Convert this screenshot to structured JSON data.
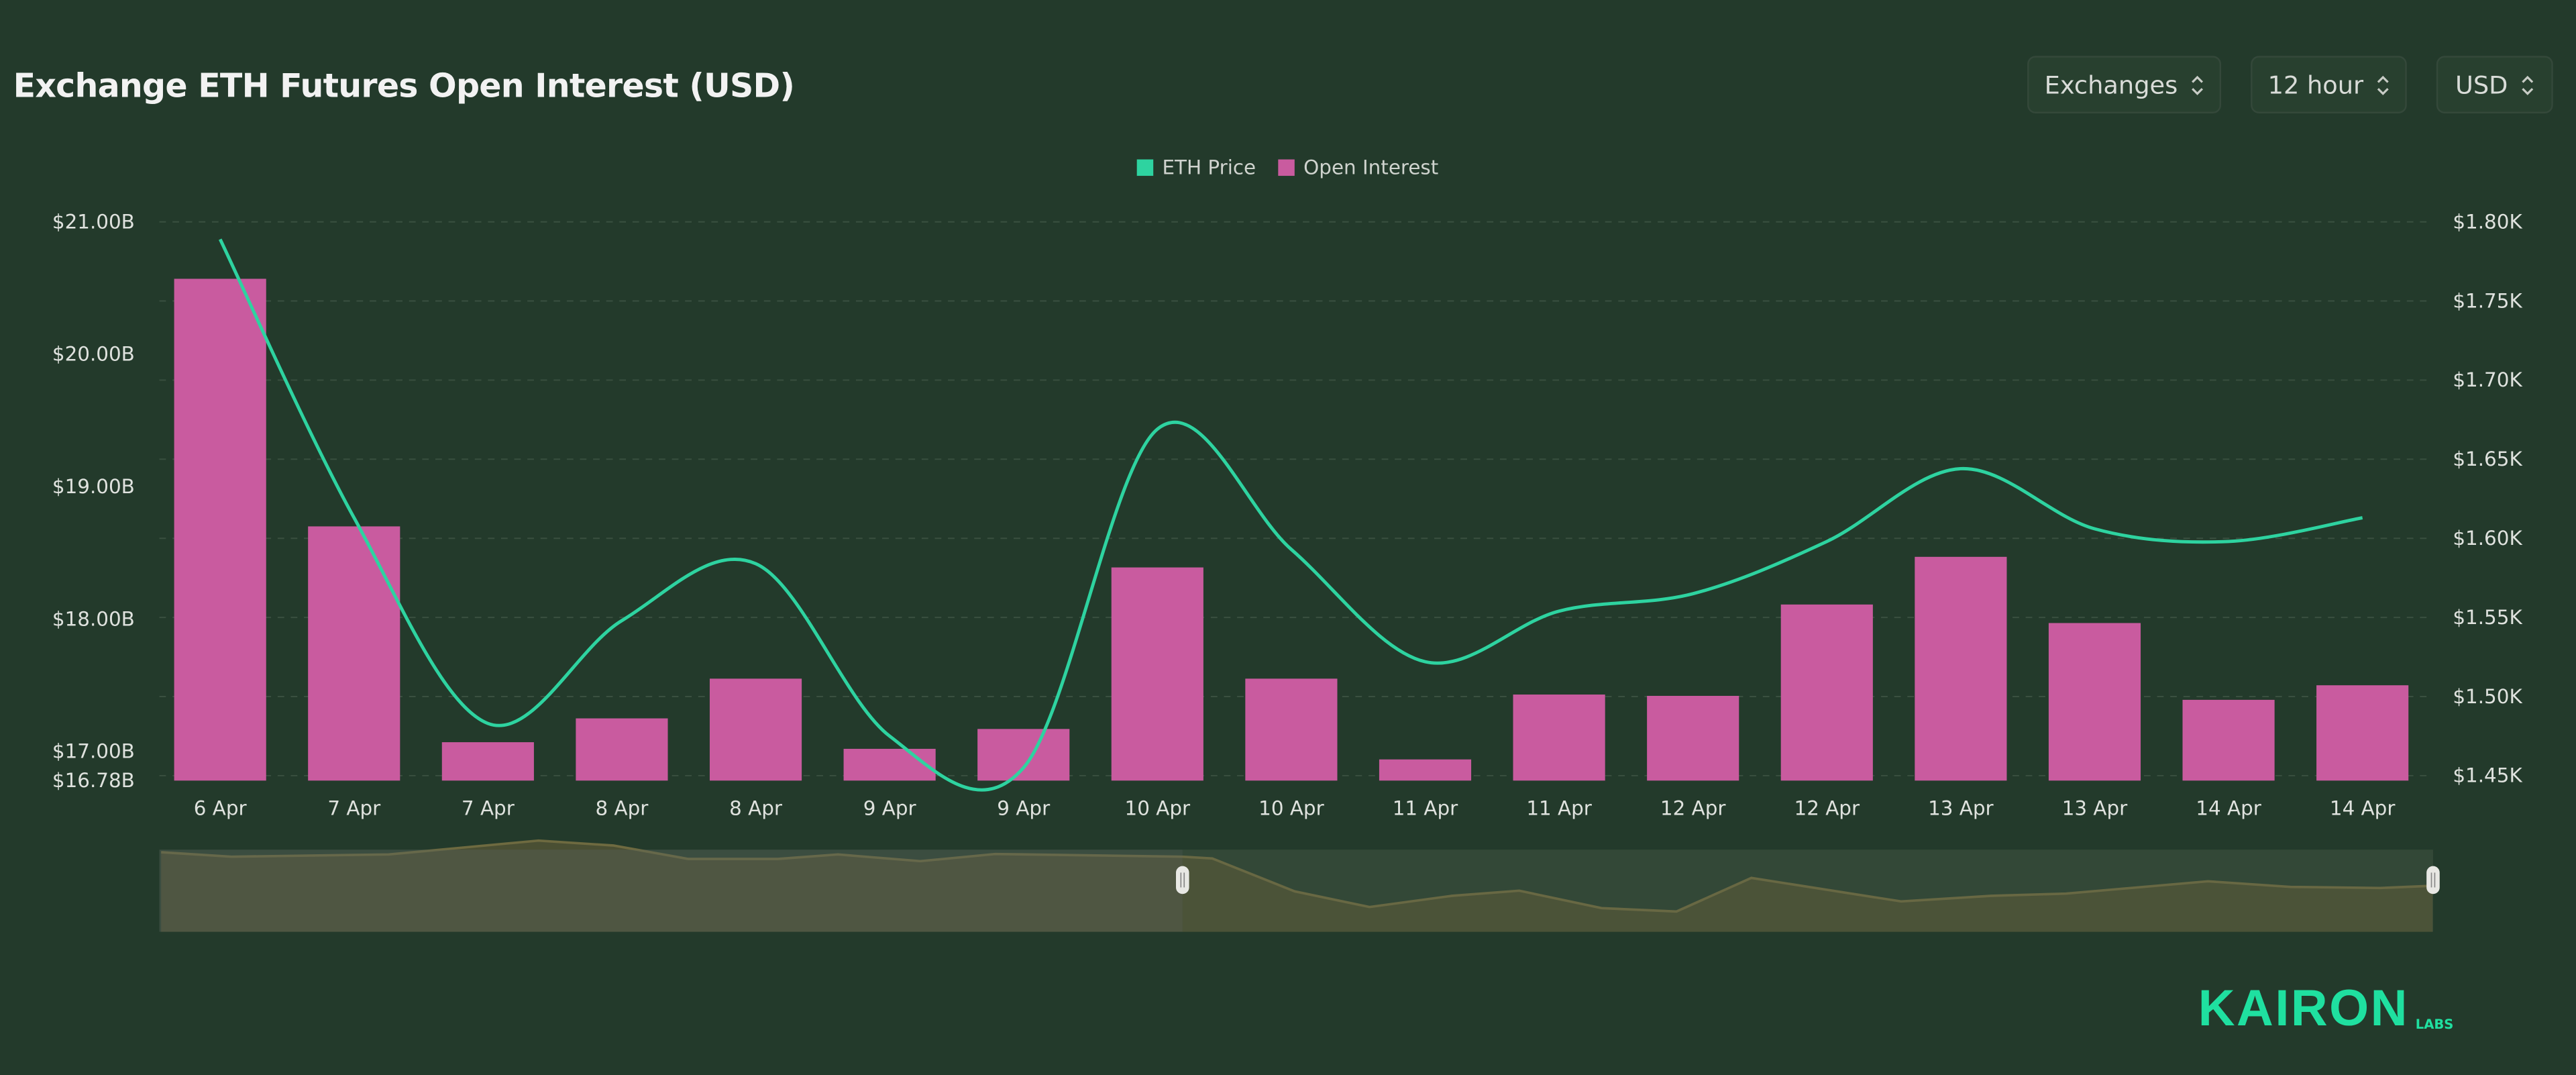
{
  "header": {
    "title": "Exchange ETH Futures Open Interest (USD)",
    "dropdowns": [
      {
        "label": "Exchanges",
        "icon": "up-down-chevron-icon"
      },
      {
        "label": "12 hour",
        "icon": "up-down-chevron-icon"
      },
      {
        "label": "USD",
        "icon": "up-down-chevron-icon"
      }
    ]
  },
  "logo": {
    "text": "KAIRON",
    "sub": "LABS"
  },
  "colors": {
    "background": "#233a2b",
    "bars": "#c95b9f",
    "line": "#2ed3a0",
    "logo": "#1fe0a0"
  },
  "navigator": {
    "selected_start_percent": 45,
    "selected_end_percent": 100
  },
  "chart_data": {
    "type": "bar+line",
    "title": "Exchange ETH Futures Open Interest (USD)",
    "legend": {
      "position": "top-center",
      "entries": [
        "ETH Price",
        "Open Interest"
      ]
    },
    "categories": [
      "6 Apr",
      "7 Apr",
      "7 Apr",
      "8 Apr",
      "8 Apr",
      "9 Apr",
      "9 Apr",
      "10 Apr",
      "10 Apr",
      "11 Apr",
      "11 Apr",
      "12 Apr",
      "12 Apr",
      "13 Apr",
      "13 Apr",
      "14 Apr",
      "14 Apr"
    ],
    "series": [
      {
        "name": "Open Interest",
        "type": "bar",
        "axis": "left",
        "unit": "USD billions",
        "values": [
          20.57,
          18.7,
          17.07,
          17.25,
          17.55,
          17.02,
          17.17,
          18.39,
          17.55,
          16.94,
          17.43,
          17.42,
          18.11,
          18.47,
          17.97,
          17.39,
          17.5
        ]
      },
      {
        "name": "ETH Price",
        "type": "line",
        "axis": "right",
        "unit": "USD thousands",
        "values": [
          1.789,
          1.613,
          1.483,
          1.548,
          1.584,
          1.475,
          1.455,
          1.669,
          1.593,
          1.522,
          1.554,
          1.565,
          1.598,
          1.644,
          1.606,
          1.598,
          1.613
        ]
      }
    ],
    "left_axis": {
      "range": [
        16.78,
        21.0
      ],
      "ticks": [
        "$21.00B",
        "$20.00B",
        "$19.00B",
        "$18.00B",
        "$17.00B",
        "$16.78B"
      ],
      "tick_values": [
        21,
        20,
        19,
        18,
        17,
        16.78
      ]
    },
    "right_axis": {
      "range": [
        1.45,
        1.8
      ],
      "ticks": [
        "$1.80K",
        "$1.75K",
        "$1.70K",
        "$1.65K",
        "$1.60K",
        "$1.55K",
        "$1.50K",
        "$1.45K"
      ],
      "tick_values": [
        1.8,
        1.75,
        1.7,
        1.65,
        1.6,
        1.55,
        1.5,
        1.45
      ]
    },
    "grid": true
  }
}
